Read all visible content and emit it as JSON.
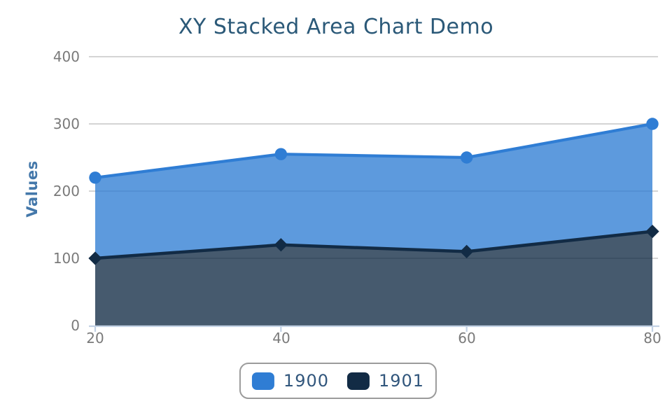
{
  "title": "XY Stacked Area Chart Demo",
  "y_axis": {
    "title": "Values",
    "tick_labels": [
      "400",
      "300",
      "200",
      "100",
      "0"
    ]
  },
  "x_axis": {
    "tick_labels": [
      "20",
      "40",
      "60",
      "80"
    ]
  },
  "legend": {
    "items": [
      {
        "label": "1900",
        "color": "#2f7dd4"
      },
      {
        "label": "1901",
        "color": "#122b45"
      }
    ]
  },
  "colors": {
    "series_1900_line": "#2f7dd4",
    "series_1900_fill": "#5c98df",
    "series_1901_line": "#122b45",
    "series_1901_fill": "#475a6e",
    "title_text": "#2b5978",
    "axis_title_text": "#4478aa",
    "tick_text": "#7a7a7a",
    "gridline": "#c5c5c5",
    "axis_line": "#c2d1e4",
    "legend_border": "#9b9b9b",
    "legend_text": "#31567c",
    "background": "#ffffff"
  },
  "chart_data": {
    "type": "area",
    "stacked": true,
    "title": "XY Stacked Area Chart Demo",
    "xlabel": "",
    "ylabel": "Values",
    "x": [
      20,
      40,
      60,
      80
    ],
    "series": [
      {
        "name": "1900",
        "marker": "circle",
        "color": "#2f7dd4",
        "values": [
          120,
          135,
          140,
          160
        ],
        "stacked_tops": [
          220,
          255,
          250,
          300
        ]
      },
      {
        "name": "1901",
        "marker": "diamond",
        "color": "#122b45",
        "values": [
          100,
          120,
          110,
          140
        ],
        "stacked_tops": [
          100,
          120,
          110,
          140
        ]
      }
    ],
    "xlim": [
      20,
      80
    ],
    "ylim": [
      0,
      400
    ],
    "x_ticks": [
      20,
      40,
      60,
      80
    ],
    "y_ticks": [
      0,
      100,
      200,
      300,
      400
    ],
    "grid": true,
    "fill_opacity": 0.78,
    "legend_position": "bottom-center"
  }
}
